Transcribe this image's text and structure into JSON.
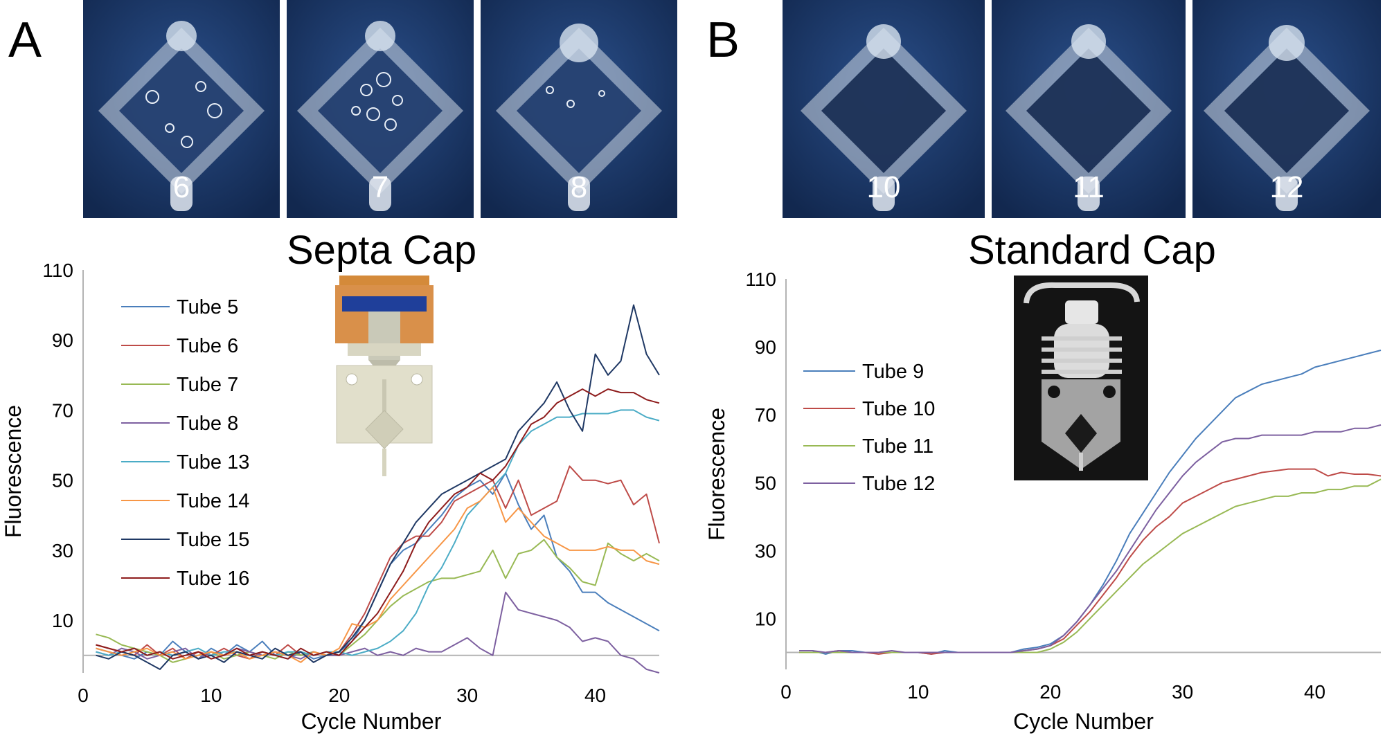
{
  "panels": {
    "a_label": "A",
    "b_label": "B"
  },
  "photos": {
    "a": [
      "6",
      "7",
      "8"
    ],
    "b": [
      "10",
      "11",
      "12"
    ]
  },
  "colors": {
    "photo_background": "#17305f",
    "baseline": "#b3b3b3"
  },
  "chart_data": [
    {
      "type": "line",
      "title": "Septa Cap",
      "xlabel": "Cycle Number",
      "ylabel": "Fluorescence",
      "xlim": [
        0,
        45
      ],
      "ylim": [
        -5,
        110
      ],
      "xticks": [
        0,
        10,
        20,
        30,
        40
      ],
      "yticks": [
        10,
        30,
        50,
        70,
        90,
        110
      ],
      "grid": false,
      "legend": "top-left",
      "baseline": 0,
      "x": [
        1,
        2,
        3,
        4,
        5,
        6,
        7,
        8,
        9,
        10,
        11,
        12,
        13,
        14,
        15,
        16,
        17,
        18,
        19,
        20,
        21,
        22,
        23,
        24,
        25,
        26,
        27,
        28,
        29,
        30,
        31,
        32,
        33,
        34,
        35,
        36,
        37,
        38,
        39,
        40,
        41,
        42,
        43,
        44,
        45
      ],
      "series": [
        {
          "name": "Tube 5",
          "color": "#4a7ebb",
          "values": [
            2,
            1,
            0,
            -1,
            1,
            0,
            4,
            1,
            -1,
            2,
            0,
            3,
            1,
            4,
            0,
            -1,
            1,
            -1,
            0,
            1,
            4,
            10,
            18,
            26,
            30,
            32,
            36,
            40,
            45,
            48,
            50,
            46,
            52,
            43,
            36,
            40,
            28,
            24,
            18,
            18,
            15,
            13,
            11,
            9,
            7
          ]
        },
        {
          "name": "Tube 6",
          "color": "#be4b48",
          "values": [
            3,
            2,
            1,
            0,
            3,
            0,
            2,
            -1,
            1,
            0,
            2,
            0,
            -1,
            1,
            0,
            3,
            0,
            1,
            0,
            1,
            6,
            12,
            20,
            28,
            32,
            34,
            34,
            38,
            44,
            46,
            48,
            50,
            42,
            50,
            40,
            42,
            44,
            54,
            50,
            50,
            49,
            50,
            43,
            46,
            32
          ]
        },
        {
          "name": "Tube 7",
          "color": "#98b954",
          "values": [
            6,
            5,
            3,
            2,
            1,
            0,
            -2,
            -1,
            0,
            1,
            -1,
            0,
            1,
            0,
            -1,
            1,
            0,
            1,
            0,
            0,
            3,
            6,
            10,
            14,
            17,
            19,
            21,
            22,
            22,
            23,
            24,
            30,
            22,
            29,
            30,
            33,
            28,
            25,
            21,
            20,
            32,
            29,
            27,
            29,
            27
          ]
        },
        {
          "name": "Tube 8",
          "color": "#7d60a0",
          "values": [
            1,
            0,
            2,
            1,
            -1,
            0,
            1,
            2,
            -1,
            1,
            0,
            2,
            1,
            0,
            1,
            0,
            -1,
            1,
            0,
            0,
            1,
            2,
            0,
            1,
            0,
            2,
            1,
            1,
            3,
            5,
            2,
            0,
            18,
            13,
            12,
            11,
            10,
            8,
            4,
            5,
            4,
            0,
            -1,
            -4,
            -5
          ]
        },
        {
          "name": "Tube 13",
          "color": "#4bacc6",
          "values": [
            1,
            0,
            1,
            2,
            0,
            1,
            0,
            1,
            2,
            0,
            1,
            1,
            0,
            1,
            0,
            1,
            1,
            0,
            1,
            1,
            0,
            1,
            2,
            4,
            7,
            12,
            20,
            25,
            32,
            40,
            44,
            48,
            52,
            60,
            64,
            66,
            68,
            68,
            69,
            69,
            69,
            70,
            70,
            68,
            67
          ]
        },
        {
          "name": "Tube 14",
          "color": "#f79646",
          "values": [
            2,
            1,
            0,
            1,
            2,
            0,
            1,
            -1,
            0,
            1,
            0,
            1,
            -1,
            0,
            1,
            0,
            -2,
            1,
            0,
            2,
            9,
            8,
            10,
            16,
            20,
            24,
            28,
            32,
            36,
            42,
            44,
            48,
            38,
            42,
            38,
            34,
            32,
            30,
            30,
            30,
            31,
            30,
            30,
            27,
            26
          ]
        },
        {
          "name": "Tube 15",
          "color": "#1f3864",
          "values": [
            0,
            -1,
            1,
            0,
            -2,
            -4,
            0,
            1,
            -1,
            0,
            -2,
            1,
            0,
            -1,
            2,
            0,
            1,
            -2,
            0,
            1,
            5,
            10,
            18,
            26,
            32,
            38,
            42,
            46,
            48,
            50,
            52,
            54,
            56,
            64,
            68,
            72,
            78,
            70,
            64,
            86,
            80,
            84,
            100,
            86,
            80
          ]
        },
        {
          "name": "Tube 16",
          "color": "#8e1c1c",
          "values": [
            3,
            2,
            1,
            2,
            0,
            1,
            -1,
            0,
            1,
            -1,
            0,
            2,
            0,
            1,
            0,
            -1,
            2,
            0,
            1,
            0,
            4,
            8,
            12,
            18,
            24,
            32,
            38,
            42,
            46,
            48,
            52,
            50,
            54,
            60,
            66,
            68,
            72,
            74,
            76,
            74,
            76,
            75,
            75,
            73,
            72
          ]
        }
      ]
    },
    {
      "type": "line",
      "title": "Standard Cap",
      "xlabel": "Cycle Number",
      "ylabel": "Fluorescence",
      "xlim": [
        0,
        45
      ],
      "ylim": [
        -5,
        110
      ],
      "xticks": [
        0,
        10,
        20,
        30,
        40
      ],
      "yticks": [
        10,
        30,
        50,
        70,
        90,
        110
      ],
      "grid": false,
      "legend": "top-left",
      "baseline": 0,
      "x": [
        1,
        2,
        3,
        4,
        5,
        6,
        7,
        8,
        9,
        10,
        11,
        12,
        13,
        14,
        15,
        16,
        17,
        18,
        19,
        20,
        21,
        22,
        23,
        24,
        25,
        26,
        27,
        28,
        29,
        30,
        31,
        32,
        33,
        34,
        35,
        36,
        37,
        38,
        39,
        40,
        41,
        42,
        43,
        44,
        45
      ],
      "series": [
        {
          "name": "Tube 9",
          "color": "#4a7ebb",
          "values": [
            0.5,
            0.5,
            -0.5,
            0.5,
            0.5,
            0,
            0,
            0,
            0,
            0,
            -0.5,
            0.5,
            0,
            0,
            0,
            0,
            0,
            1,
            1.5,
            2.5,
            5,
            9,
            14,
            20,
            27,
            35,
            41,
            47,
            53,
            58,
            63,
            67,
            71,
            75,
            77,
            79,
            80,
            81,
            82,
            84,
            85,
            86,
            87,
            88,
            89
          ]
        },
        {
          "name": "Tube 10",
          "color": "#be4b48",
          "values": [
            0,
            0,
            0,
            0.5,
            0,
            0,
            -0.5,
            0,
            0,
            0,
            -0.5,
            0,
            0,
            0,
            0,
            0,
            0,
            0.5,
            1,
            2,
            4,
            8,
            12,
            17,
            22,
            28,
            33,
            37,
            40,
            44,
            46,
            48,
            50,
            51,
            52,
            53,
            53.5,
            54,
            54,
            54,
            52,
            53,
            52.5,
            52.5,
            52
          ]
        },
        {
          "name": "Tube 11",
          "color": "#98b954",
          "values": [
            0,
            0,
            0,
            0,
            0,
            0,
            0,
            0,
            0,
            0,
            0,
            0,
            0,
            0,
            0,
            0,
            0,
            0,
            0,
            1,
            3,
            6,
            10,
            14,
            18,
            22,
            26,
            29,
            32,
            35,
            37,
            39,
            41,
            43,
            44,
            45,
            46,
            46,
            47,
            47,
            48,
            48,
            49,
            49,
            51
          ]
        },
        {
          "name": "Tube 12",
          "color": "#7d60a0",
          "values": [
            0.5,
            0.5,
            0,
            0.5,
            0,
            0,
            0,
            0.5,
            0,
            0,
            0,
            0,
            0,
            0,
            0,
            0,
            0,
            0.5,
            1,
            2,
            5,
            9,
            14,
            19,
            24,
            30,
            36,
            42,
            47,
            52,
            56,
            59,
            62,
            63,
            63,
            64,
            64,
            64,
            64,
            65,
            65,
            65,
            66,
            66,
            67
          ]
        }
      ]
    }
  ]
}
